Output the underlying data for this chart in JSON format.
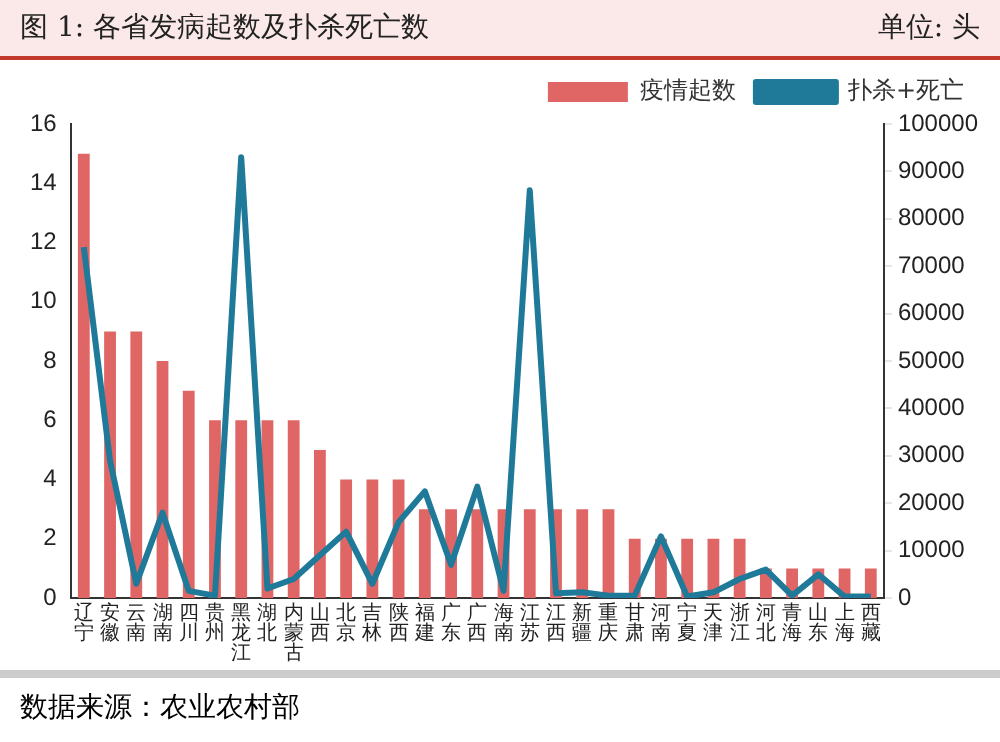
{
  "chart_data": {
    "type": "bar",
    "title": "图 1:  各省发病起数及扑杀死亡数",
    "subtitle": "单位:  头",
    "categories": [
      "辽宁",
      "安徽",
      "云南",
      "湖南",
      "四川",
      "贵州",
      "黑龙江",
      "湖北",
      "内蒙古",
      "山西",
      "北京",
      "吉林",
      "陕西",
      "福建",
      "广东",
      "广西",
      "海南",
      "江苏",
      "江西",
      "新疆",
      "重庆",
      "甘肃",
      "河南",
      "宁夏",
      "天津",
      "浙江",
      "河北",
      "青海",
      "山东",
      "上海",
      "西藏"
    ],
    "series": [
      {
        "name": "疫情起数",
        "color": "#e06666",
        "values": [
          15,
          9,
          9,
          8,
          7,
          6,
          6,
          6,
          6,
          5,
          4,
          4,
          4,
          3,
          3,
          3,
          3,
          3,
          3,
          3,
          3,
          2,
          2,
          2,
          2,
          2,
          1,
          1,
          1,
          1,
          1
        ]
      },
      {
        "name": "扑杀+死亡",
        "type": "line",
        "axis": "y2",
        "color": "#1f7a99",
        "values": [
          74000,
          29000,
          3000,
          18000,
          1500,
          500,
          93000,
          2000,
          4000,
          9000,
          14000,
          3000,
          16000,
          22500,
          7000,
          23500,
          1500,
          86000,
          1000,
          1200,
          500,
          500,
          13000,
          300,
          1200,
          4000,
          6000,
          500,
          5000,
          300,
          300
        ]
      }
    ],
    "ylim": [
      0,
      16
    ],
    "yticks": [
      0,
      2,
      4,
      6,
      8,
      10,
      12,
      14,
      16
    ],
    "y2lim": [
      0,
      100000
    ],
    "y2ticks": [
      0,
      10000,
      20000,
      30000,
      40000,
      50000,
      60000,
      70000,
      80000,
      90000,
      100000
    ],
    "grid": false,
    "legend": "top right",
    "marker": "none",
    "annotations": [
      "数据来源：农业农村部"
    ]
  }
}
